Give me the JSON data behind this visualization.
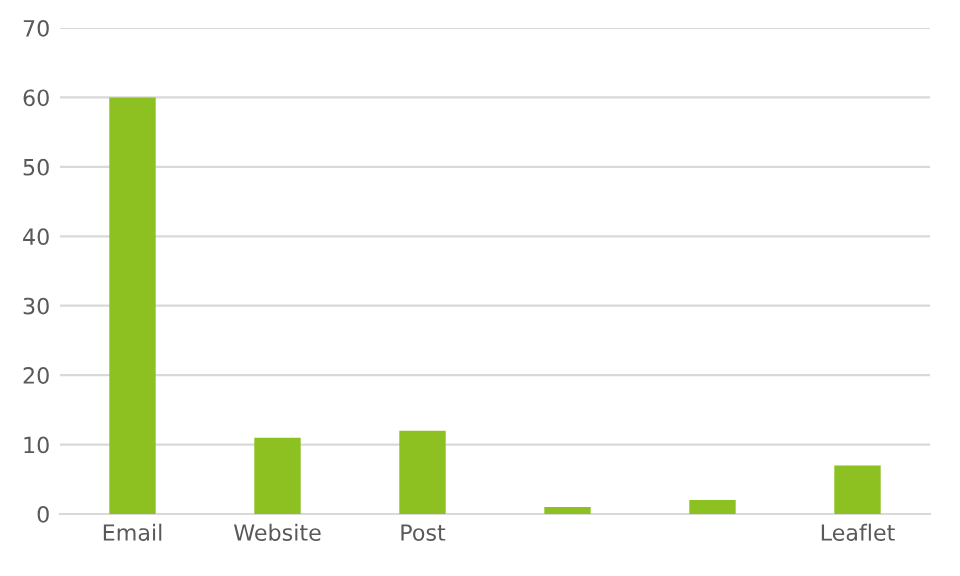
{
  "chart_data": {
    "type": "bar",
    "categories": [
      "Email",
      "Website",
      "Post",
      null,
      null,
      "Leaflet"
    ],
    "values": [
      60,
      11,
      12,
      1,
      2,
      7
    ],
    "color": "#8dc021",
    "ylim": [
      0,
      70
    ],
    "yticks": [
      0,
      10,
      20,
      30,
      40,
      50,
      60,
      70
    ],
    "grid": "y"
  }
}
